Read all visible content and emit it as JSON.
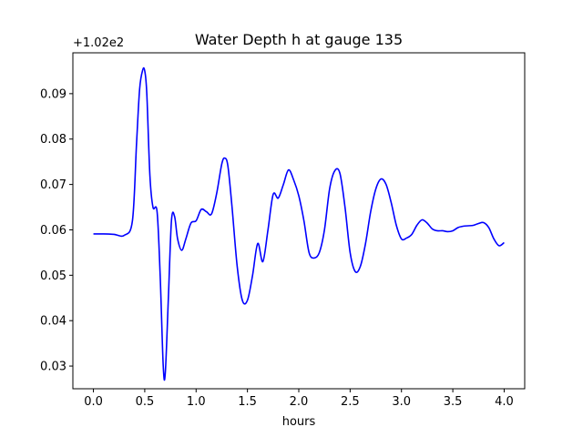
{
  "chart_data": {
    "type": "line",
    "title": "Water Depth h at gauge 135",
    "xlabel": "hours",
    "ylabel": "",
    "offset_label": "+1.02e2",
    "xlim": [
      -0.2,
      4.2
    ],
    "ylim": [
      0.025,
      0.099
    ],
    "x_ticks": [
      0.0,
      0.5,
      1.0,
      1.5,
      2.0,
      2.5,
      3.0,
      3.5,
      4.0
    ],
    "x_tick_labels": [
      "0.0",
      "0.5",
      "1.0",
      "1.5",
      "2.0",
      "2.5",
      "3.0",
      "3.5",
      "4.0"
    ],
    "y_ticks": [
      0.03,
      0.04,
      0.05,
      0.06,
      0.07,
      0.08,
      0.09
    ],
    "y_tick_labels": [
      "0.03",
      "0.04",
      "0.05",
      "0.06",
      "0.07",
      "0.08",
      "0.09"
    ],
    "grid": false,
    "series": [
      {
        "color": "#0000ff",
        "x": [
          0.0,
          0.1,
          0.2,
          0.3,
          0.38,
          0.42,
          0.45,
          0.48,
          0.5,
          0.52,
          0.55,
          0.58,
          0.62,
          0.65,
          0.68,
          0.7,
          0.73,
          0.76,
          0.79,
          0.82,
          0.86,
          0.9,
          0.95,
          1.0,
          1.05,
          1.1,
          1.15,
          1.2,
          1.25,
          1.28,
          1.31,
          1.35,
          1.4,
          1.45,
          1.5,
          1.55,
          1.6,
          1.65,
          1.7,
          1.75,
          1.8,
          1.85,
          1.9,
          1.95,
          2.0,
          2.05,
          2.1,
          2.15,
          2.2,
          2.25,
          2.3,
          2.35,
          2.4,
          2.45,
          2.5,
          2.55,
          2.6,
          2.65,
          2.7,
          2.75,
          2.8,
          2.85,
          2.9,
          2.95,
          3.0,
          3.05,
          3.1,
          3.15,
          3.2,
          3.25,
          3.3,
          3.35,
          3.4,
          3.45,
          3.5,
          3.55,
          3.6,
          3.65,
          3.7,
          3.75,
          3.8,
          3.85,
          3.9,
          3.95,
          4.0
        ],
        "y": [
          0.0591,
          0.0591,
          0.059,
          0.0588,
          0.062,
          0.079,
          0.091,
          0.0952,
          0.095,
          0.09,
          0.072,
          0.065,
          0.064,
          0.05,
          0.03,
          0.0285,
          0.045,
          0.062,
          0.063,
          0.058,
          0.0555,
          0.058,
          0.0615,
          0.062,
          0.0645,
          0.064,
          0.0635,
          0.068,
          0.0745,
          0.0758,
          0.074,
          0.065,
          0.052,
          0.0445,
          0.0445,
          0.05,
          0.057,
          0.053,
          0.06,
          0.0678,
          0.067,
          0.07,
          0.0732,
          0.071,
          0.0675,
          0.062,
          0.055,
          0.0538,
          0.055,
          0.06,
          0.069,
          0.073,
          0.0725,
          0.065,
          0.055,
          0.0508,
          0.052,
          0.057,
          0.064,
          0.069,
          0.0712,
          0.07,
          0.066,
          0.061,
          0.058,
          0.0582,
          0.059,
          0.061,
          0.0622,
          0.0615,
          0.0602,
          0.0598,
          0.0598,
          0.0596,
          0.0598,
          0.0605,
          0.0608,
          0.0609,
          0.061,
          0.0614,
          0.0616,
          0.0605,
          0.058,
          0.0565,
          0.0572
        ]
      }
    ]
  }
}
